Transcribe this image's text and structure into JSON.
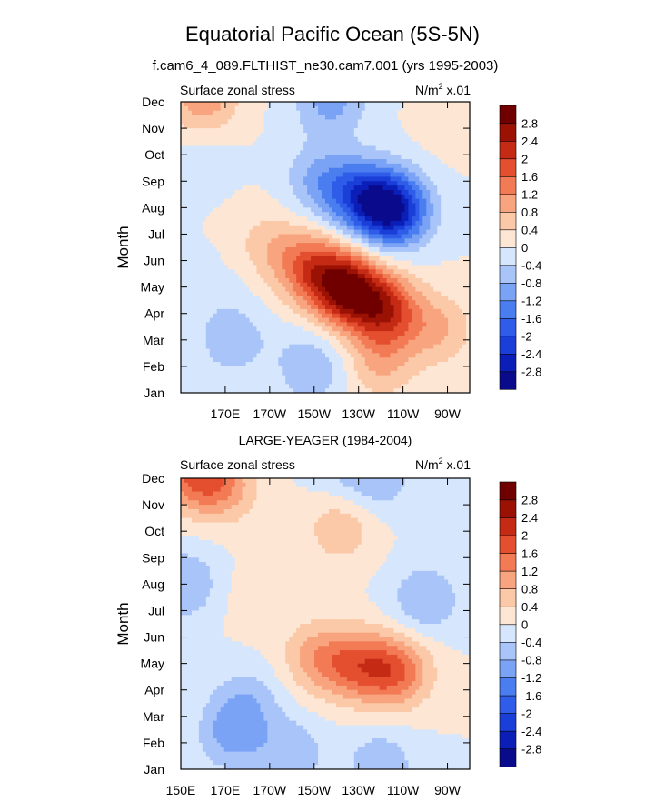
{
  "page": {
    "title": "Equatorial Pacific Ocean (5S-5N)",
    "subtitle": "f.cam6_4_089.FLTHIST_ne30.cam7.001 (yrs 1995-2003)"
  },
  "chart_data": [
    {
      "type": "heatmap",
      "panel_title": "",
      "left_label": "Surface zonal stress",
      "units_label": "N/m",
      "units_sup": "2",
      "units_scale": " x.01",
      "ylabel": "Month",
      "xlim": [
        140,
        270
      ],
      "x_ticks": [
        160,
        180,
        200,
        220,
        240,
        260
      ],
      "x_tick_labels": [
        "170E",
        "170W",
        "150W",
        "130W",
        "110W",
        "90W"
      ],
      "y_ticks": [
        0,
        1,
        2,
        3,
        4,
        5,
        6,
        7,
        8,
        9,
        10,
        11
      ],
      "y_tick_labels": [
        "Jan",
        "Feb",
        "Mar",
        "Apr",
        "May",
        "Jun",
        "Jul",
        "Aug",
        "Sep",
        "Oct",
        "Nov",
        "Dec"
      ],
      "colorbar_levels": [
        -2.8,
        -2.4,
        -2,
        -1.6,
        -1.2,
        -0.8,
        -0.4,
        0,
        0.4,
        0.8,
        1.2,
        1.6,
        2,
        2.4,
        2.8
      ],
      "colorbar_colors": [
        "#0a0b8c",
        "#0b1fb8",
        "#1a3fd8",
        "#2f5ce8",
        "#4a7ef0",
        "#7aa2f5",
        "#a8c4f8",
        "#d6e6fc",
        "#fde6d4",
        "#fbc9a8",
        "#f8a47e",
        "#f27a55",
        "#e44f2f",
        "#c42a14",
        "#9b1204",
        "#700000"
      ],
      "features": [
        {
          "x": 150,
          "y": 11.1,
          "value": 1.1
        },
        {
          "x": 205,
          "y": 10.9,
          "value": -0.6
        },
        {
          "x": 212,
          "y": 11.2,
          "value": -0.4
        },
        {
          "x": 236,
          "y": 6.9,
          "value": -2.6
        },
        {
          "x": 222,
          "y": 7.4,
          "value": -1.8
        },
        {
          "x": 203,
          "y": 8.0,
          "value": -0.9
        },
        {
          "x": 215,
          "y": 3.9,
          "value": 2.7
        },
        {
          "x": 199,
          "y": 4.7,
          "value": 1.6
        },
        {
          "x": 232,
          "y": 3.1,
          "value": 2.0
        },
        {
          "x": 180,
          "y": 5.6,
          "value": 0.6
        },
        {
          "x": 230,
          "y": 1.1,
          "value": 0.8
        },
        {
          "x": 256,
          "y": 2.4,
          "value": 0.8
        },
        {
          "x": 262,
          "y": 10.4,
          "value": 0.3
        },
        {
          "x": 163,
          "y": 2.0,
          "value": -0.7
        },
        {
          "x": 200,
          "y": 0.8,
          "value": -0.6
        },
        {
          "x": 195,
          "y": 1.4,
          "value": -0.2
        },
        {
          "x": 150,
          "y": 9.0,
          "value": -0.2
        },
        {
          "x": 157,
          "y": 4.0,
          "value": -0.15
        }
      ]
    },
    {
      "type": "heatmap",
      "panel_title": "LARGE-YEAGER (1984-2004)",
      "left_label": "Surface zonal stress",
      "units_label": "N/m",
      "units_sup": "2",
      "units_scale": " x.01",
      "ylabel": "Month",
      "xlim": [
        140,
        270
      ],
      "x_ticks": [
        140,
        160,
        180,
        200,
        220,
        240,
        260
      ],
      "x_tick_labels": [
        "150E",
        "170E",
        "170W",
        "150W",
        "130W",
        "110W",
        "90W"
      ],
      "y_ticks": [
        0,
        1,
        2,
        3,
        4,
        5,
        6,
        7,
        8,
        9,
        10,
        11
      ],
      "y_tick_labels": [
        "Jan",
        "Feb",
        "Mar",
        "Apr",
        "May",
        "Jun",
        "Jul",
        "Aug",
        "Sep",
        "Oct",
        "Nov",
        "Dec"
      ],
      "colorbar_levels": [
        -2.8,
        -2.4,
        -2,
        -1.6,
        -1.2,
        -0.8,
        -0.4,
        0,
        0.4,
        0.8,
        1.2,
        1.6,
        2,
        2.4,
        2.8
      ],
      "colorbar_colors": [
        "#0a0b8c",
        "#0b1fb8",
        "#1a3fd8",
        "#2f5ce8",
        "#4a7ef0",
        "#7aa2f5",
        "#a8c4f8",
        "#d6e6fc",
        "#fde6d4",
        "#fbc9a8",
        "#f8a47e",
        "#f27a55",
        "#e44f2f",
        "#c42a14",
        "#9b1204",
        "#700000"
      ],
      "features": [
        {
          "x": 147,
          "y": 11.2,
          "value": 1.6
        },
        {
          "x": 160,
          "y": 10.6,
          "value": 0.8
        },
        {
          "x": 220,
          "y": 3.9,
          "value": 1.3
        },
        {
          "x": 237,
          "y": 3.7,
          "value": 1.5
        },
        {
          "x": 202,
          "y": 4.2,
          "value": 1.0
        },
        {
          "x": 212,
          "y": 9.1,
          "value": 0.7
        },
        {
          "x": 230,
          "y": 11.0,
          "value": -0.6
        },
        {
          "x": 215,
          "y": 11.5,
          "value": -0.5
        },
        {
          "x": 163,
          "y": 1.3,
          "value": -0.9
        },
        {
          "x": 190,
          "y": 0.6,
          "value": -0.7
        },
        {
          "x": 230,
          "y": 0.2,
          "value": -0.7
        },
        {
          "x": 142,
          "y": 7.0,
          "value": -0.8
        },
        {
          "x": 250,
          "y": 6.4,
          "value": -0.8
        },
        {
          "x": 175,
          "y": 6.5,
          "value": 0.3
        },
        {
          "x": 170,
          "y": 2.6,
          "value": -0.6
        },
        {
          "x": 268,
          "y": 10.0,
          "value": -0.3
        }
      ]
    }
  ]
}
